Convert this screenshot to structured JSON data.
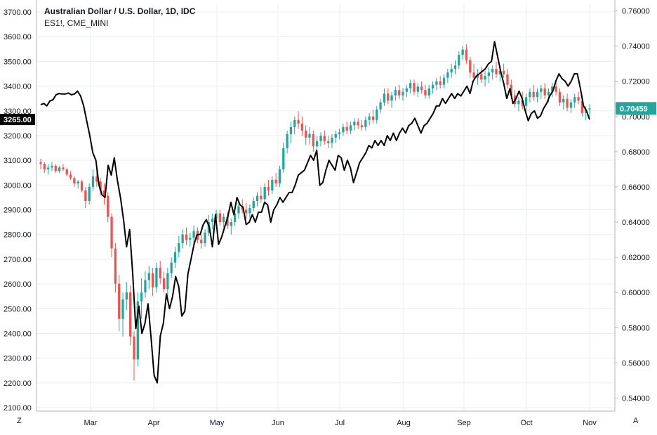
{
  "legend": {
    "title": "Australian Dollar / U.S. Dollar, 1D, IDC",
    "overlay": "ES1!, CME_MINI"
  },
  "corners": {
    "left": "Z",
    "right": "A"
  },
  "colors": {
    "up": "#26a69a",
    "down": "#ef5350",
    "overlay": "#000000",
    "grid": "#e9edf2",
    "axis": "#131722"
  },
  "chart_data": {
    "type": "line",
    "title": "Australian Dollar / U.S. Dollar, 1D, IDC",
    "x_tick_labels": [
      "Mar",
      "Apr",
      "May",
      "Jun",
      "Jul",
      "Aug",
      "Sep",
      "Oct",
      "Nov"
    ],
    "left_axis": {
      "series": "ES1!, CME_MINI",
      "ticks": [
        "3700.00",
        "3600.00",
        "3500.00",
        "3400.00",
        "3300.00",
        "3200.00",
        "3100.00",
        "3000.00",
        "2900.00",
        "2800.00",
        "2700.00",
        "2600.00",
        "2500.00",
        "2400.00",
        "2300.00",
        "2200.00",
        "2100.00"
      ],
      "range": [
        2100,
        3700
      ],
      "last_value_label": "3265.00",
      "last_value": 3265
    },
    "right_axis": {
      "series": "Australian Dollar / U.S. Dollar",
      "ticks": [
        "0.76000",
        "0.74000",
        "0.72000",
        "0.70000",
        "0.68000",
        "0.66000",
        "0.64000",
        "0.62000",
        "0.60000",
        "0.58000",
        "0.56000",
        "0.54000"
      ],
      "range": [
        0.532,
        0.7635
      ],
      "last_value_label": "0.70459",
      "last_value": 0.70459
    },
    "series": [
      {
        "name": "ES1!, CME_MINI",
        "kind": "line",
        "axis": "left",
        "values": [
          3325,
          3330,
          3320,
          3340,
          3345,
          3365,
          3370,
          3368,
          3368,
          3372,
          3365,
          3368,
          3380,
          3360,
          3320,
          3260,
          3200,
          3130,
          3100,
          3000,
          2960,
          2950,
          3080,
          3040,
          3110,
          3020,
          2950,
          2860,
          2750,
          2820,
          2640,
          2420,
          2510,
          2400,
          2440,
          2520,
          2380,
          2230,
          2200,
          2390,
          2440,
          2560,
          2500,
          2550,
          2630,
          2590,
          2470,
          2490,
          2640,
          2700,
          2760,
          2800,
          2800,
          2840,
          2860,
          2830,
          2750,
          2880,
          2760,
          2790,
          2830,
          2870,
          2930,
          2880,
          2950,
          2920,
          2910,
          2840,
          2850,
          2880,
          2850,
          2890,
          2890,
          2930,
          2920,
          2850,
          2900,
          2920,
          2950,
          2930,
          2950,
          2970,
          2970,
          3000,
          3040,
          3050,
          3060,
          3090,
          3120,
          3100,
          3140,
          2999,
          3010,
          3060,
          3100,
          3080,
          3060,
          3120,
          3110,
          3060,
          3100,
          3070,
          3010,
          3050,
          3090,
          3110,
          3130,
          3160,
          3150,
          3180,
          3160,
          3180,
          3160,
          3200,
          3180,
          3210,
          3180,
          3210,
          3230,
          3210,
          3240,
          3250,
          3270,
          3240,
          3210,
          3240,
          3250,
          3270,
          3290,
          3320,
          3320,
          3350,
          3330,
          3350,
          3370,
          3350,
          3370,
          3360,
          3380,
          3400,
          3370,
          3420,
          3440,
          3450,
          3460,
          3470,
          3490,
          3500,
          3580,
          3520,
          3460,
          3410,
          3350,
          3390,
          3330,
          3350,
          3380,
          3350,
          3300,
          3260,
          3290,
          3300,
          3270,
          3280,
          3310,
          3330,
          3360,
          3380,
          3420,
          3450,
          3430,
          3420,
          3400,
          3420,
          3450,
          3450,
          3390,
          3320,
          3300,
          3265
        ]
      },
      {
        "name": "Australian Dollar / U.S. Dollar",
        "kind": "candlestick",
        "axis": "right",
        "ohlc": [
          [
            0.674,
            0.676,
            0.67,
            0.673
          ],
          [
            0.673,
            0.674,
            0.668,
            0.67
          ],
          [
            0.67,
            0.673,
            0.667,
            0.671
          ],
          [
            0.671,
            0.674,
            0.669,
            0.672
          ],
          [
            0.672,
            0.673,
            0.668,
            0.669
          ],
          [
            0.669,
            0.672,
            0.668,
            0.671
          ],
          [
            0.671,
            0.673,
            0.669,
            0.67
          ],
          [
            0.67,
            0.671,
            0.666,
            0.667
          ],
          [
            0.667,
            0.669,
            0.664,
            0.665
          ],
          [
            0.665,
            0.666,
            0.66,
            0.662
          ],
          [
            0.662,
            0.664,
            0.659,
            0.663
          ],
          [
            0.663,
            0.664,
            0.657,
            0.658
          ],
          [
            0.658,
            0.66,
            0.648,
            0.652
          ],
          [
            0.652,
            0.662,
            0.65,
            0.66
          ],
          [
            0.66,
            0.67,
            0.658,
            0.666
          ],
          [
            0.666,
            0.67,
            0.66,
            0.663
          ],
          [
            0.663,
            0.665,
            0.655,
            0.658
          ],
          [
            0.658,
            0.662,
            0.65,
            0.655
          ],
          [
            0.655,
            0.657,
            0.64,
            0.643
          ],
          [
            0.643,
            0.645,
            0.62,
            0.625
          ],
          [
            0.625,
            0.628,
            0.6,
            0.605
          ],
          [
            0.605,
            0.61,
            0.578,
            0.585
          ],
          [
            0.585,
            0.6,
            0.575,
            0.596
          ],
          [
            0.596,
            0.606,
            0.59,
            0.6
          ],
          [
            0.6,
            0.604,
            0.57,
            0.575
          ],
          [
            0.575,
            0.578,
            0.55,
            0.562
          ],
          [
            0.562,
            0.6,
            0.558,
            0.595
          ],
          [
            0.595,
            0.608,
            0.585,
            0.6
          ],
          [
            0.6,
            0.612,
            0.597,
            0.607
          ],
          [
            0.607,
            0.615,
            0.602,
            0.611
          ],
          [
            0.611,
            0.614,
            0.598,
            0.603
          ],
          [
            0.603,
            0.617,
            0.6,
            0.614
          ],
          [
            0.614,
            0.618,
            0.605,
            0.608
          ],
          [
            0.608,
            0.612,
            0.6,
            0.602
          ],
          [
            0.602,
            0.614,
            0.598,
            0.611
          ],
          [
            0.611,
            0.62,
            0.608,
            0.617
          ],
          [
            0.617,
            0.626,
            0.614,
            0.623
          ],
          [
            0.623,
            0.632,
            0.62,
            0.628
          ],
          [
            0.628,
            0.636,
            0.625,
            0.633
          ],
          [
            0.633,
            0.637,
            0.627,
            0.63
          ],
          [
            0.63,
            0.634,
            0.626,
            0.631
          ],
          [
            0.631,
            0.638,
            0.627,
            0.635
          ],
          [
            0.635,
            0.637,
            0.628,
            0.63
          ],
          [
            0.63,
            0.633,
            0.625,
            0.628
          ],
          [
            0.628,
            0.636,
            0.626,
            0.634
          ],
          [
            0.634,
            0.644,
            0.632,
            0.64
          ],
          [
            0.64,
            0.645,
            0.636,
            0.642
          ],
          [
            0.642,
            0.647,
            0.639,
            0.645
          ],
          [
            0.645,
            0.647,
            0.638,
            0.64
          ],
          [
            0.64,
            0.645,
            0.637,
            0.643
          ],
          [
            0.643,
            0.646,
            0.636,
            0.638
          ],
          [
            0.638,
            0.642,
            0.633,
            0.64
          ],
          [
            0.64,
            0.648,
            0.638,
            0.645
          ],
          [
            0.645,
            0.652,
            0.642,
            0.649
          ],
          [
            0.649,
            0.653,
            0.645,
            0.647
          ],
          [
            0.647,
            0.651,
            0.642,
            0.645
          ],
          [
            0.645,
            0.65,
            0.642,
            0.648
          ],
          [
            0.648,
            0.654,
            0.646,
            0.652
          ],
          [
            0.652,
            0.657,
            0.649,
            0.655
          ],
          [
            0.655,
            0.66,
            0.651,
            0.653
          ],
          [
            0.653,
            0.662,
            0.651,
            0.66
          ],
          [
            0.66,
            0.664,
            0.655,
            0.658
          ],
          [
            0.658,
            0.666,
            0.656,
            0.664
          ],
          [
            0.664,
            0.668,
            0.66,
            0.662
          ],
          [
            0.662,
            0.672,
            0.66,
            0.67
          ],
          [
            0.67,
            0.685,
            0.668,
            0.682
          ],
          [
            0.682,
            0.692,
            0.679,
            0.69
          ],
          [
            0.69,
            0.697,
            0.685,
            0.694
          ],
          [
            0.694,
            0.7,
            0.69,
            0.698
          ],
          [
            0.698,
            0.703,
            0.693,
            0.696
          ],
          [
            0.696,
            0.7,
            0.689,
            0.692
          ],
          [
            0.692,
            0.695,
            0.684,
            0.688
          ],
          [
            0.688,
            0.694,
            0.684,
            0.69
          ],
          [
            0.69,
            0.692,
            0.68,
            0.683
          ],
          [
            0.683,
            0.689,
            0.68,
            0.686
          ],
          [
            0.686,
            0.691,
            0.683,
            0.689
          ],
          [
            0.689,
            0.692,
            0.684,
            0.686
          ],
          [
            0.686,
            0.689,
            0.682,
            0.685
          ],
          [
            0.685,
            0.69,
            0.682,
            0.688
          ],
          [
            0.688,
            0.692,
            0.685,
            0.69
          ],
          [
            0.69,
            0.693,
            0.687,
            0.691
          ],
          [
            0.691,
            0.696,
            0.689,
            0.694
          ],
          [
            0.694,
            0.697,
            0.69,
            0.692
          ],
          [
            0.692,
            0.697,
            0.69,
            0.695
          ],
          [
            0.695,
            0.699,
            0.692,
            0.697
          ],
          [
            0.697,
            0.699,
            0.693,
            0.695
          ],
          [
            0.695,
            0.698,
            0.692,
            0.694
          ],
          [
            0.694,
            0.7,
            0.692,
            0.698
          ],
          [
            0.698,
            0.702,
            0.695,
            0.7
          ],
          [
            0.7,
            0.704,
            0.696,
            0.698
          ],
          [
            0.698,
            0.706,
            0.696,
            0.704
          ],
          [
            0.704,
            0.71,
            0.702,
            0.708
          ],
          [
            0.708,
            0.716,
            0.706,
            0.713
          ],
          [
            0.713,
            0.716,
            0.707,
            0.709
          ],
          [
            0.709,
            0.714,
            0.705,
            0.712
          ],
          [
            0.712,
            0.717,
            0.709,
            0.715
          ],
          [
            0.715,
            0.718,
            0.71,
            0.712
          ],
          [
            0.712,
            0.716,
            0.709,
            0.714
          ],
          [
            0.714,
            0.718,
            0.711,
            0.716
          ],
          [
            0.716,
            0.721,
            0.713,
            0.719
          ],
          [
            0.719,
            0.721,
            0.712,
            0.714
          ],
          [
            0.714,
            0.719,
            0.711,
            0.717
          ],
          [
            0.717,
            0.72,
            0.713,
            0.715
          ],
          [
            0.715,
            0.718,
            0.71,
            0.712
          ],
          [
            0.712,
            0.718,
            0.71,
            0.716
          ],
          [
            0.716,
            0.72,
            0.713,
            0.718
          ],
          [
            0.718,
            0.722,
            0.715,
            0.72
          ],
          [
            0.72,
            0.723,
            0.716,
            0.718
          ],
          [
            0.718,
            0.724,
            0.716,
            0.722
          ],
          [
            0.722,
            0.727,
            0.719,
            0.725
          ],
          [
            0.725,
            0.73,
            0.722,
            0.727
          ],
          [
            0.727,
            0.732,
            0.724,
            0.729
          ],
          [
            0.729,
            0.737,
            0.727,
            0.735
          ],
          [
            0.735,
            0.74,
            0.732,
            0.738
          ],
          [
            0.738,
            0.741,
            0.73,
            0.732
          ],
          [
            0.732,
            0.734,
            0.722,
            0.725
          ],
          [
            0.725,
            0.73,
            0.72,
            0.722
          ],
          [
            0.722,
            0.727,
            0.718,
            0.724
          ],
          [
            0.724,
            0.728,
            0.719,
            0.721
          ],
          [
            0.721,
            0.726,
            0.717,
            0.723
          ],
          [
            0.723,
            0.728,
            0.719,
            0.725
          ],
          [
            0.725,
            0.729,
            0.721,
            0.727
          ],
          [
            0.727,
            0.731,
            0.722,
            0.724
          ],
          [
            0.724,
            0.729,
            0.72,
            0.726
          ],
          [
            0.726,
            0.73,
            0.722,
            0.724
          ],
          [
            0.724,
            0.727,
            0.716,
            0.718
          ],
          [
            0.718,
            0.721,
            0.71,
            0.712
          ],
          [
            0.712,
            0.715,
            0.705,
            0.707
          ],
          [
            0.707,
            0.711,
            0.703,
            0.709
          ],
          [
            0.709,
            0.714,
            0.704,
            0.706
          ],
          [
            0.706,
            0.713,
            0.703,
            0.711
          ],
          [
            0.711,
            0.716,
            0.708,
            0.714
          ],
          [
            0.714,
            0.718,
            0.709,
            0.711
          ],
          [
            0.711,
            0.716,
            0.708,
            0.714
          ],
          [
            0.714,
            0.718,
            0.71,
            0.716
          ],
          [
            0.716,
            0.719,
            0.71,
            0.712
          ],
          [
            0.712,
            0.716,
            0.708,
            0.714
          ],
          [
            0.714,
            0.719,
            0.711,
            0.717
          ],
          [
            0.717,
            0.72,
            0.712,
            0.714
          ],
          [
            0.714,
            0.716,
            0.706,
            0.708
          ],
          [
            0.708,
            0.712,
            0.704,
            0.71
          ],
          [
            0.71,
            0.713,
            0.703,
            0.705
          ],
          [
            0.705,
            0.71,
            0.702,
            0.708
          ],
          [
            0.708,
            0.713,
            0.705,
            0.711
          ],
          [
            0.711,
            0.714,
            0.707,
            0.709
          ],
          [
            0.709,
            0.712,
            0.7,
            0.702
          ],
          [
            0.702,
            0.706,
            0.698,
            0.704
          ],
          [
            0.704,
            0.707,
            0.7,
            0.7046
          ]
        ]
      }
    ],
    "grid": true,
    "legend_position": "top-left"
  }
}
